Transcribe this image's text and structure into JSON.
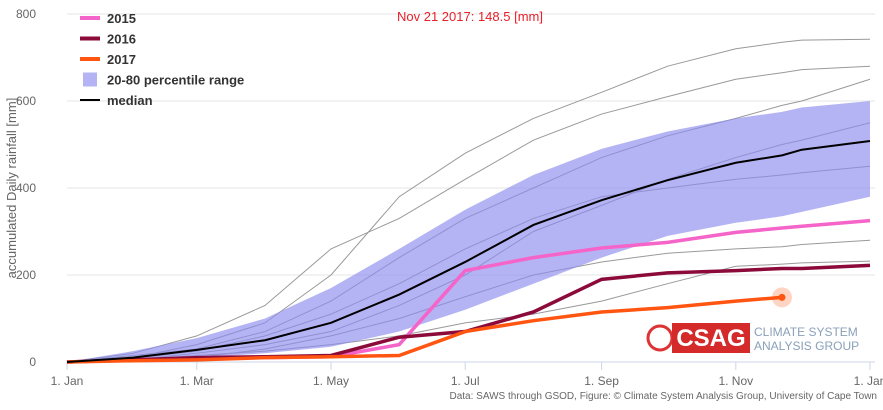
{
  "chart_data": {
    "type": "line",
    "annotation": "Nov 21 2017: 148.5 [mm]",
    "y_label": "accumulated Daily rainfall [mm]",
    "credits": "Data: SAWS through GSOD, Figure: © Climate System Analysis Group, University of Cape Town",
    "logo": {
      "short": "CSAG",
      "line1": "CLIMATE SYSTEM",
      "line2": "ANALYSIS GROUP"
    },
    "x": [
      0,
      30,
      59,
      90,
      120,
      151,
      181,
      212,
      243,
      273,
      304,
      325,
      334,
      365
    ],
    "xlim": [
      0,
      365
    ],
    "xticks": [
      {
        "value": 0,
        "label": "1. Jan"
      },
      {
        "value": 59,
        "label": "1. Mar"
      },
      {
        "value": 120,
        "label": "1. May"
      },
      {
        "value": 181,
        "label": "1. Jul"
      },
      {
        "value": 243,
        "label": "1. Sep"
      },
      {
        "value": 304,
        "label": "1. Nov"
      },
      {
        "value": 365,
        "label": "1. Jan"
      }
    ],
    "ylim": [
      0,
      800
    ],
    "yticks": [
      0,
      200,
      400,
      600,
      800
    ],
    "grid": true,
    "series": [
      {
        "name": "2015",
        "color": "#f564c8",
        "values": [
          0,
          5,
          8,
          10,
          12,
          40,
          210,
          240,
          262,
          275,
          298,
          308,
          312,
          325
        ]
      },
      {
        "name": "2016",
        "color": "#8b0a3a",
        "values": [
          0,
          5,
          10,
          12,
          15,
          57,
          70,
          115,
          190,
          205,
          210,
          215,
          215,
          222
        ]
      },
      {
        "name": "2017",
        "color": "#ff5511",
        "values": [
          0,
          3,
          5,
          10,
          12,
          15,
          70,
          95,
          115,
          125,
          140,
          148.5,
          null,
          null
        ]
      },
      {
        "name": "20-80 percentile range",
        "color": "#8c8cf0",
        "lower": [
          0,
          3,
          10,
          20,
          35,
          70,
          120,
          180,
          240,
          290,
          320,
          335,
          345,
          380
        ],
        "upper": [
          0,
          25,
          55,
          100,
          170,
          260,
          350,
          430,
          490,
          530,
          560,
          575,
          585,
          600
        ]
      },
      {
        "name": "median",
        "color": "#000000",
        "values": [
          0,
          10,
          28,
          50,
          90,
          155,
          230,
          315,
          372,
          418,
          458,
          475,
          488,
          508
        ]
      }
    ],
    "other_years": {
      "color": "#999999",
      "lines": [
        [
          0,
          10,
          40,
          90,
          200,
          380,
          480,
          560,
          620,
          680,
          720,
          735,
          740,
          742
        ],
        [
          0,
          20,
          60,
          130,
          260,
          330,
          420,
          510,
          570,
          610,
          650,
          665,
          672,
          680
        ],
        [
          0,
          15,
          30,
          70,
          140,
          240,
          330,
          400,
          470,
          520,
          560,
          590,
          600,
          650
        ],
        [
          0,
          5,
          20,
          40,
          70,
          130,
          200,
          300,
          360,
          420,
          470,
          500,
          510,
          550
        ],
        [
          0,
          8,
          25,
          60,
          110,
          180,
          260,
          330,
          380,
          400,
          420,
          430,
          435,
          450
        ],
        [
          0,
          2,
          10,
          30,
          60,
          100,
          150,
          200,
          230,
          250,
          260,
          265,
          270,
          280
        ],
        [
          0,
          5,
          15,
          25,
          40,
          60,
          90,
          110,
          140,
          180,
          220,
          225,
          228,
          232
        ]
      ]
    }
  }
}
